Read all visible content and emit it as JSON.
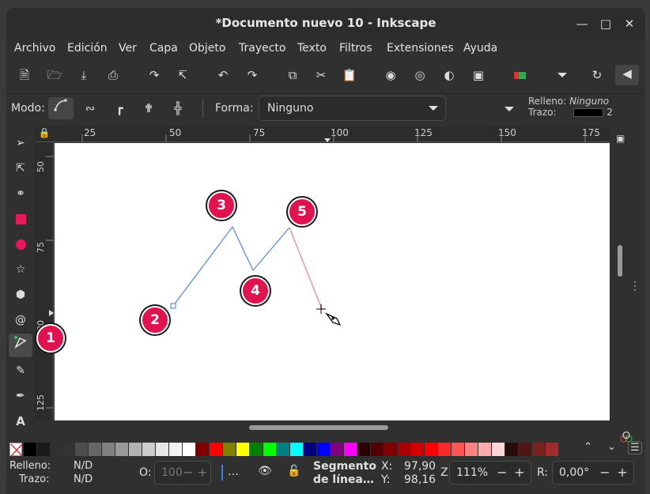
{
  "window": {
    "title": "*Documento nuevo 10 - Inkscape"
  },
  "menu": [
    "Archivo",
    "Edición",
    "Ver",
    "Capa",
    "Objeto",
    "Trayecto",
    "Texto",
    "Filtros",
    "Extensiones",
    "Ayuda"
  ],
  "tool_controls": {
    "mode_label": "Modo:",
    "shape_label": "Forma:",
    "shape_value": "Ninguno",
    "fill_label": "Relleno:",
    "fill_value": "Ninguno",
    "stroke_label": "Trazo:",
    "stroke_width": "2"
  },
  "rulers": {
    "horizontal": [
      "25",
      "50",
      "75",
      "100",
      "125",
      "150",
      "175"
    ],
    "vertical": [
      "50",
      "75",
      "100",
      "125"
    ]
  },
  "annotations": [
    "1",
    "2",
    "3",
    "4",
    "5"
  ],
  "path_colors": {
    "committed": "#5b8ee6",
    "pending": "#f08a8a",
    "marker": "#e0134f"
  },
  "status": {
    "fill_label": "Relleno:",
    "fill_value": "N/D",
    "stroke_label": "Trazo:",
    "stroke_value": "N/D",
    "opacity_label": "O:",
    "opacity_value": "100",
    "layer_dots": "…",
    "message_line1": "Segmento",
    "message_line2": "de línea…",
    "x_label": "X:",
    "x_value": "97,90",
    "y_label": "Y:",
    "y_value": "98,16",
    "zoom_label": "Z:",
    "zoom_value": "111%",
    "rotation_label": "R:",
    "rotation_value": "0,00°"
  }
}
